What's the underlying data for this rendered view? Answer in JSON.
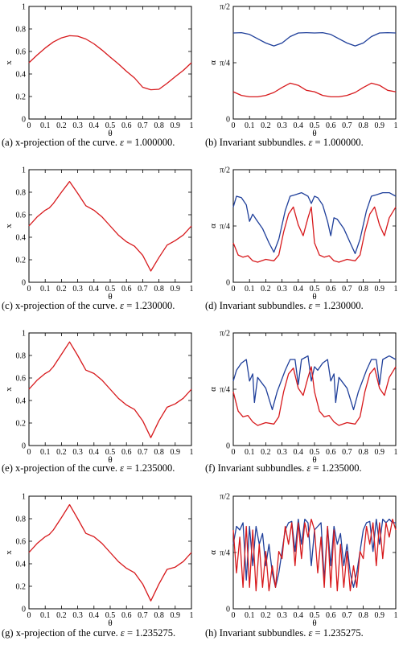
{
  "colors": {
    "red": "#d7191c",
    "blue": "#1f3f9a",
    "axis": "#000000"
  },
  "captions": [
    {
      "label": "(a)",
      "text": "x-projection of the curve.",
      "eps": "1.000000."
    },
    {
      "label": "(b)",
      "text": "Invariant subbundles.",
      "eps": "1.000000."
    },
    {
      "label": "(c)",
      "text": "x-projection of the curve.",
      "eps": "1.230000."
    },
    {
      "label": "(d)",
      "text": "Invariant subbundles.",
      "eps": "1.230000."
    },
    {
      "label": "(e)",
      "text": "x-projection of the curve.",
      "eps": "1.235000."
    },
    {
      "label": "(f)",
      "text": "Invariant subbundles.",
      "eps": "1.235000."
    },
    {
      "label": "(g)",
      "text": "x-projection of the curve.",
      "eps": "1.235275."
    },
    {
      "label": "(h)",
      "text": "Invariant subbundles.",
      "eps": "1.235275."
    }
  ],
  "eps_symbol": "ε",
  "eq_sign": "=",
  "chart_data": [
    {
      "type": "line",
      "xlabel": "θ",
      "ylabel": "x",
      "xlim": [
        0,
        1
      ],
      "ylim": [
        0,
        1
      ],
      "xticks": [
        "0",
        "0.1",
        "0.2",
        "0.3",
        "0.4",
        "0.5",
        "0.6",
        "0.7",
        "0.8",
        "0.9",
        "1"
      ],
      "yticks": [
        "0",
        "0.2",
        "0.4",
        "0.6",
        "0.8",
        "1"
      ],
      "series": [
        {
          "color": "red",
          "x": [
            0,
            0.05,
            0.1,
            0.15,
            0.2,
            0.25,
            0.3,
            0.35,
            0.4,
            0.45,
            0.5,
            0.55,
            0.6,
            0.65,
            0.7,
            0.75,
            0.8,
            0.85,
            0.9,
            0.95,
            1
          ],
          "y": [
            0.5,
            0.568,
            0.631,
            0.684,
            0.721,
            0.74,
            0.736,
            0.711,
            0.668,
            0.612,
            0.55,
            0.49,
            0.424,
            0.364,
            0.282,
            0.26,
            0.264,
            0.317,
            0.376,
            0.432,
            0.5
          ]
        }
      ]
    },
    {
      "type": "line",
      "xlabel": "θ",
      "ylabel": "α",
      "xlim": [
        0,
        1
      ],
      "ylim": [
        0,
        1.5708
      ],
      "xticks": [
        "0",
        "0.1",
        "0.2",
        "0.3",
        "0.4",
        "0.5",
        "0.6",
        "0.7",
        "0.8",
        "0.9",
        "1"
      ],
      "yticks": [
        "0",
        "π/4",
        "π/2"
      ],
      "series": [
        {
          "color": "blue",
          "x": [
            0,
            0.05,
            0.1,
            0.15,
            0.2,
            0.25,
            0.3,
            0.35,
            0.4,
            0.45,
            0.5,
            0.55,
            0.6,
            0.65,
            0.7,
            0.75,
            0.8,
            0.85,
            0.9,
            0.95,
            1
          ],
          "y": [
            1.2,
            1.205,
            1.18,
            1.12,
            1.06,
            1.02,
            1.06,
            1.15,
            1.2,
            1.205,
            1.2,
            1.205,
            1.18,
            1.12,
            1.06,
            1.02,
            1.06,
            1.15,
            1.2,
            1.205,
            1.2
          ]
        },
        {
          "color": "red",
          "x": [
            0,
            0.05,
            0.1,
            0.15,
            0.2,
            0.25,
            0.3,
            0.35,
            0.4,
            0.45,
            0.5,
            0.55,
            0.6,
            0.65,
            0.7,
            0.75,
            0.8,
            0.85,
            0.9,
            0.95,
            1
          ],
          "y": [
            0.38,
            0.33,
            0.31,
            0.31,
            0.33,
            0.37,
            0.44,
            0.5,
            0.47,
            0.4,
            0.38,
            0.33,
            0.31,
            0.31,
            0.33,
            0.37,
            0.44,
            0.5,
            0.47,
            0.4,
            0.38
          ]
        }
      ]
    },
    {
      "type": "line",
      "xlabel": "θ",
      "ylabel": "x",
      "xlim": [
        0,
        1
      ],
      "ylim": [
        0,
        1
      ],
      "xticks": [
        "0",
        "0.1",
        "0.2",
        "0.3",
        "0.4",
        "0.5",
        "0.6",
        "0.7",
        "0.8",
        "0.9",
        "1"
      ],
      "yticks": [
        "0",
        "0.2",
        "0.4",
        "0.6",
        "0.8",
        "1"
      ],
      "series": [
        {
          "color": "red",
          "x": [
            0,
            0.05,
            0.1,
            0.125,
            0.15,
            0.2,
            0.25,
            0.3,
            0.35,
            0.4,
            0.45,
            0.5,
            0.55,
            0.6,
            0.625,
            0.65,
            0.7,
            0.75,
            0.8,
            0.85,
            0.9,
            0.95,
            1
          ],
          "y": [
            0.5,
            0.58,
            0.64,
            0.66,
            0.7,
            0.8,
            0.895,
            0.79,
            0.68,
            0.64,
            0.58,
            0.5,
            0.42,
            0.36,
            0.34,
            0.32,
            0.24,
            0.1,
            0.22,
            0.33,
            0.37,
            0.42,
            0.5
          ]
        }
      ]
    },
    {
      "type": "line",
      "xlabel": "θ",
      "ylabel": "α",
      "xlim": [
        0,
        1
      ],
      "ylim": [
        0,
        1.5708
      ],
      "xticks": [
        "0",
        "0.1",
        "0.2",
        "0.3",
        "0.4",
        "0.5",
        "0.6",
        "0.7",
        "0.8",
        "0.9",
        "1"
      ],
      "yticks": [
        "0",
        "π/4",
        "π/2"
      ],
      "series": [
        {
          "color": "blue",
          "x": [
            0,
            0.02,
            0.05,
            0.08,
            0.1,
            0.12,
            0.14,
            0.18,
            0.22,
            0.25,
            0.28,
            0.32,
            0.35,
            0.38,
            0.42,
            0.46,
            0.48,
            0.5,
            0.52,
            0.55,
            0.58,
            0.6,
            0.62,
            0.64,
            0.68,
            0.72,
            0.75,
            0.78,
            0.82,
            0.85,
            0.88,
            0.92,
            0.96,
            1
          ],
          "y": [
            1.05,
            1.2,
            1.18,
            1.08,
            0.85,
            0.95,
            0.88,
            0.75,
            0.55,
            0.42,
            0.6,
            1.0,
            1.2,
            1.22,
            1.25,
            1.2,
            1.1,
            1.2,
            1.18,
            1.08,
            0.85,
            0.65,
            0.9,
            0.88,
            0.75,
            0.55,
            0.4,
            0.6,
            1.0,
            1.2,
            1.22,
            1.25,
            1.25,
            1.2
          ]
        },
        {
          "color": "red",
          "x": [
            0,
            0.03,
            0.06,
            0.09,
            0.12,
            0.15,
            0.2,
            0.25,
            0.28,
            0.31,
            0.34,
            0.37,
            0.4,
            0.43,
            0.46,
            0.48,
            0.5,
            0.53,
            0.56,
            0.59,
            0.62,
            0.65,
            0.7,
            0.75,
            0.78,
            0.81,
            0.84,
            0.87,
            0.9,
            0.93,
            0.96,
            1
          ],
          "y": [
            0.55,
            0.38,
            0.35,
            0.37,
            0.3,
            0.28,
            0.32,
            0.3,
            0.38,
            0.7,
            0.95,
            1.05,
            0.8,
            0.65,
            0.9,
            1.05,
            0.55,
            0.38,
            0.35,
            0.37,
            0.3,
            0.28,
            0.32,
            0.3,
            0.38,
            0.7,
            0.95,
            1.05,
            0.8,
            0.65,
            0.9,
            1.05
          ]
        }
      ]
    },
    {
      "type": "line",
      "xlabel": "θ",
      "ylabel": "x",
      "xlim": [
        0,
        1
      ],
      "ylim": [
        0,
        1
      ],
      "xticks": [
        "0",
        "0.1",
        "0.2",
        "0.3",
        "0.4",
        "0.5",
        "0.6",
        "0.7",
        "0.8",
        "0.9",
        "1"
      ],
      "yticks": [
        "0",
        "0.2",
        "0.4",
        "0.6",
        "0.8",
        "1"
      ],
      "series": [
        {
          "color": "red",
          "x": [
            0,
            0.05,
            0.1,
            0.125,
            0.15,
            0.2,
            0.25,
            0.3,
            0.35,
            0.4,
            0.45,
            0.5,
            0.55,
            0.6,
            0.625,
            0.65,
            0.7,
            0.75,
            0.8,
            0.85,
            0.9,
            0.95,
            1
          ],
          "y": [
            0.5,
            0.58,
            0.64,
            0.66,
            0.7,
            0.81,
            0.92,
            0.8,
            0.67,
            0.64,
            0.58,
            0.5,
            0.42,
            0.36,
            0.34,
            0.32,
            0.22,
            0.07,
            0.22,
            0.34,
            0.37,
            0.42,
            0.5
          ]
        }
      ]
    },
    {
      "type": "line",
      "xlabel": "θ",
      "ylabel": "α",
      "xlim": [
        0,
        1
      ],
      "ylim": [
        0,
        1.5708
      ],
      "xticks": [
        "0",
        "0.1",
        "0.2",
        "0.3",
        "0.4",
        "0.5",
        "0.6",
        "0.7",
        "0.8",
        "0.9",
        "1"
      ],
      "yticks": [
        "0",
        "π/4",
        "π/2"
      ],
      "series": [
        {
          "color": "blue",
          "x": [
            0,
            0.02,
            0.05,
            0.08,
            0.1,
            0.12,
            0.13,
            0.15,
            0.2,
            0.24,
            0.27,
            0.32,
            0.35,
            0.38,
            0.4,
            0.42,
            0.46,
            0.48,
            0.5,
            0.52,
            0.55,
            0.58,
            0.6,
            0.62,
            0.63,
            0.65,
            0.7,
            0.74,
            0.77,
            0.82,
            0.85,
            0.88,
            0.9,
            0.92,
            0.96,
            1
          ],
          "y": [
            0.9,
            1.05,
            1.15,
            1.2,
            0.9,
            1.0,
            0.6,
            0.95,
            0.8,
            0.5,
            0.75,
            1.05,
            1.2,
            1.2,
            0.85,
            1.2,
            1.25,
            0.9,
            1.1,
            1.05,
            1.15,
            1.2,
            0.9,
            1.0,
            0.6,
            0.95,
            0.8,
            0.5,
            0.75,
            1.05,
            1.2,
            1.2,
            0.85,
            1.2,
            1.25,
            1.2
          ]
        },
        {
          "color": "red",
          "x": [
            0,
            0.03,
            0.06,
            0.09,
            0.12,
            0.15,
            0.2,
            0.25,
            0.28,
            0.31,
            0.34,
            0.37,
            0.4,
            0.43,
            0.46,
            0.48,
            0.5,
            0.53,
            0.56,
            0.59,
            0.62,
            0.65,
            0.7,
            0.75,
            0.78,
            0.81,
            0.84,
            0.87,
            0.9,
            0.93,
            0.96,
            1
          ],
          "y": [
            0.75,
            0.48,
            0.4,
            0.42,
            0.33,
            0.28,
            0.32,
            0.3,
            0.4,
            0.75,
            1.0,
            1.08,
            0.8,
            0.7,
            0.95,
            1.1,
            0.75,
            0.48,
            0.4,
            0.42,
            0.33,
            0.28,
            0.32,
            0.3,
            0.4,
            0.75,
            1.0,
            1.08,
            0.8,
            0.7,
            0.95,
            1.1
          ]
        }
      ]
    },
    {
      "type": "line",
      "xlabel": "θ",
      "ylabel": "x",
      "xlim": [
        0,
        1
      ],
      "ylim": [
        0,
        1
      ],
      "xticks": [
        "0",
        "0.1",
        "0.2",
        "0.3",
        "0.4",
        "0.5",
        "0.6",
        "0.7",
        "0.8",
        "0.9",
        "1"
      ],
      "yticks": [
        "0",
        "0.2",
        "0.4",
        "0.6",
        "0.8",
        "1"
      ],
      "series": [
        {
          "color": "red",
          "x": [
            0,
            0.05,
            0.1,
            0.125,
            0.15,
            0.2,
            0.25,
            0.3,
            0.35,
            0.4,
            0.45,
            0.5,
            0.55,
            0.6,
            0.625,
            0.65,
            0.7,
            0.75,
            0.8,
            0.85,
            0.9,
            0.95,
            1
          ],
          "y": [
            0.5,
            0.58,
            0.64,
            0.66,
            0.7,
            0.81,
            0.925,
            0.8,
            0.67,
            0.64,
            0.58,
            0.5,
            0.42,
            0.36,
            0.34,
            0.32,
            0.22,
            0.07,
            0.22,
            0.35,
            0.37,
            0.42,
            0.5
          ]
        }
      ]
    },
    {
      "type": "line",
      "xlabel": "θ",
      "ylabel": "α",
      "xlim": [
        0,
        1
      ],
      "ylim": [
        0,
        1.5708
      ],
      "xticks": [
        "0",
        "0.1",
        "0.2",
        "0.3",
        "0.4",
        "0.5",
        "0.6",
        "0.7",
        "0.8",
        "0.9",
        "1"
      ],
      "yticks": [
        "0",
        "π/4",
        "π/2"
      ],
      "series": [
        {
          "color": "blue",
          "x": [
            0,
            0.02,
            0.04,
            0.06,
            0.08,
            0.1,
            0.12,
            0.14,
            0.16,
            0.18,
            0.2,
            0.22,
            0.24,
            0.26,
            0.28,
            0.3,
            0.32,
            0.34,
            0.36,
            0.38,
            0.4,
            0.42,
            0.44,
            0.46,
            0.48,
            0.5,
            0.52,
            0.54,
            0.56,
            0.58,
            0.6,
            0.62,
            0.64,
            0.66,
            0.68,
            0.7,
            0.72,
            0.74,
            0.76,
            0.78,
            0.8,
            0.82,
            0.84,
            0.86,
            0.88,
            0.9,
            0.92,
            0.94,
            0.96,
            0.98,
            1
          ],
          "y": [
            0.9,
            1.15,
            1.1,
            1.2,
            0.4,
            1.15,
            0.6,
            1.15,
            0.9,
            1.05,
            0.6,
            0.9,
            0.5,
            0.3,
            0.5,
            0.8,
            1.1,
            1.2,
            1.22,
            0.8,
            1.25,
            0.9,
            1.25,
            1.2,
            0.6,
            1.1,
            1.15,
            1.2,
            0.4,
            1.15,
            0.6,
            1.15,
            0.9,
            1.05,
            0.6,
            0.9,
            0.5,
            0.3,
            0.5,
            0.8,
            1.1,
            1.2,
            1.22,
            0.8,
            1.25,
            0.9,
            1.25,
            1.2,
            1.25,
            1.2,
            1.2
          ]
        },
        {
          "color": "red",
          "x": [
            0,
            0.02,
            0.04,
            0.06,
            0.08,
            0.1,
            0.12,
            0.14,
            0.16,
            0.18,
            0.2,
            0.22,
            0.24,
            0.26,
            0.28,
            0.3,
            0.32,
            0.34,
            0.36,
            0.38,
            0.4,
            0.42,
            0.44,
            0.46,
            0.48,
            0.5,
            0.52,
            0.54,
            0.56,
            0.58,
            0.6,
            0.62,
            0.64,
            0.66,
            0.68,
            0.7,
            0.72,
            0.74,
            0.76,
            0.78,
            0.8,
            0.82,
            0.84,
            0.86,
            0.88,
            0.9,
            0.92,
            0.94,
            0.96,
            0.98,
            1
          ],
          "y": [
            1.1,
            0.5,
            1.0,
            0.3,
            1.15,
            0.3,
            1.1,
            0.25,
            0.9,
            0.3,
            0.8,
            0.25,
            0.6,
            0.3,
            0.8,
            0.7,
            1.15,
            0.9,
            1.2,
            0.6,
            1.2,
            0.7,
            1.2,
            1.0,
            1.25,
            1.1,
            0.5,
            1.0,
            0.3,
            1.15,
            0.3,
            1.1,
            0.25,
            0.9,
            0.3,
            0.8,
            0.25,
            0.6,
            0.3,
            0.8,
            0.7,
            1.15,
            0.9,
            1.2,
            0.6,
            1.2,
            0.7,
            1.2,
            1.0,
            1.25,
            1.1
          ]
        }
      ]
    }
  ]
}
